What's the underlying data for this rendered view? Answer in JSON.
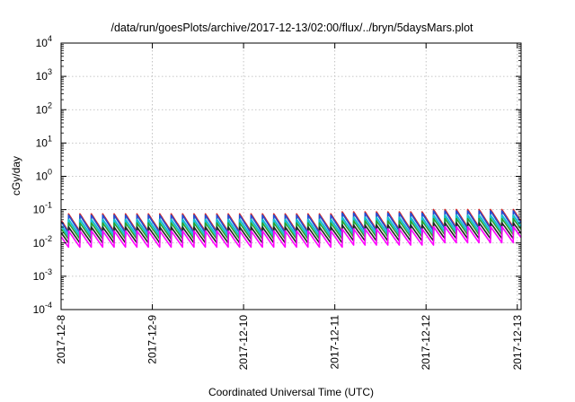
{
  "chart_data": {
    "type": "line",
    "title": "/data/run/goesPlots/archive/2017-12-13/02:00/flux/../bryn/5daysMars.plot",
    "xlabel": "Coordinated Universal Time (UTC)",
    "ylabel": "cGy/day",
    "yscale": "log",
    "ylim": [
      0.0001,
      10000
    ],
    "xlim": [
      "2017-12-08T00:00",
      "2017-12-13T01:00"
    ],
    "x_ticks": [
      "2017-12-8",
      "2017-12-9",
      "2017-12-10",
      "2017-12-11",
      "2017-12-12",
      "2017-12-13"
    ],
    "y_ticks": [
      {
        "base": "10",
        "exp": "-4"
      },
      {
        "base": "10",
        "exp": "-3"
      },
      {
        "base": "10",
        "exp": "-2"
      },
      {
        "base": "10",
        "exp": "-1"
      },
      {
        "base": "10",
        "exp": "0"
      },
      {
        "base": "10",
        "exp": "1"
      },
      {
        "base": "10",
        "exp": "2"
      },
      {
        "base": "10",
        "exp": "3"
      },
      {
        "base": "10",
        "exp": "4"
      }
    ],
    "grid": true,
    "legend": "none",
    "sawtooth_period_hours": 3,
    "segments": [
      {
        "from": "2017-12-08T00:00",
        "to": "2017-12-11T00:00",
        "factor": 1.0
      },
      {
        "from": "2017-12-11T00:00",
        "to": "2017-12-12T00:00",
        "factor": 1.15
      },
      {
        "from": "2017-12-12T00:00",
        "to": "2017-12-13T01:00",
        "factor": 1.35
      }
    ],
    "series": [
      {
        "color": "#d62728",
        "peak": 0.075,
        "trough": 0.022
      },
      {
        "color": "#1f4fd6",
        "peak": 0.068,
        "trough": 0.02
      },
      {
        "color": "#17becf",
        "peak": 0.05,
        "trough": 0.016
      },
      {
        "color": "#2ca02c",
        "peak": 0.04,
        "trough": 0.013
      },
      {
        "color": "#222222",
        "peak": 0.03,
        "trough": 0.01
      },
      {
        "color": "#ff00ff",
        "peak": 0.023,
        "trough": 0.0075
      }
    ]
  }
}
